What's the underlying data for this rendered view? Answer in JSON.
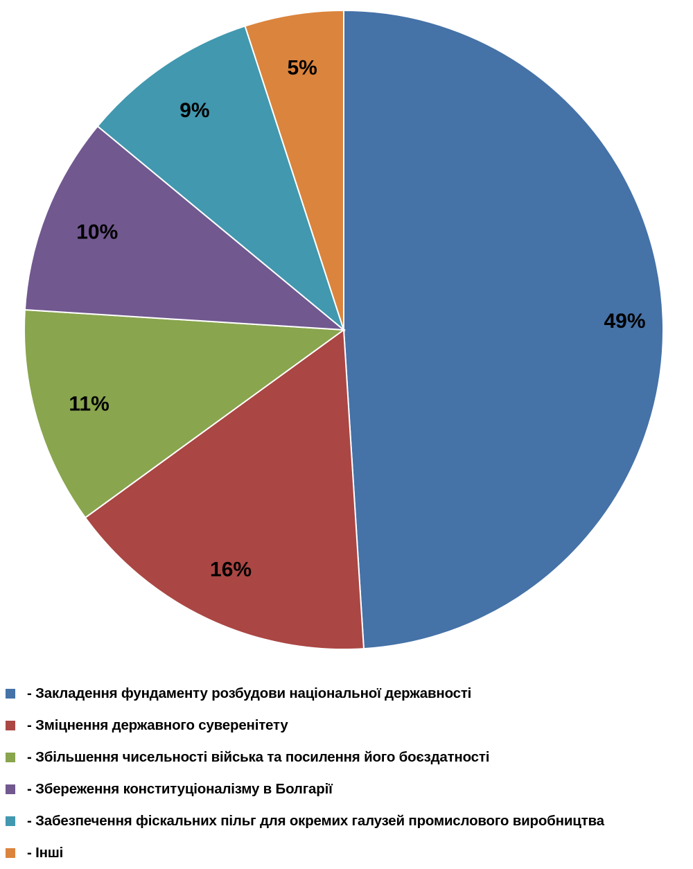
{
  "chart_data": {
    "type": "pie",
    "title": "",
    "legend_position": "bottom",
    "categories": [
      "- Закладення фундаменту розбудови національної державності",
      "- Зміцнення державного суверенітету",
      "- Збільшення чисельності війська та посилення його боєздатності",
      "- Збереження конституціоналізму в Болгарії",
      "- Забезпечення фіскальних пільг для окремих галузей промислового виробництва",
      "- Інші"
    ],
    "values": [
      49,
      16,
      11,
      10,
      9,
      5
    ],
    "labels": [
      "49%",
      "16%",
      "11%",
      "10%",
      "9%",
      "5%"
    ],
    "colors": [
      "#4572A7",
      "#AA4643",
      "#89A54E",
      "#71588F",
      "#4198AF",
      "#DB843D"
    ]
  }
}
